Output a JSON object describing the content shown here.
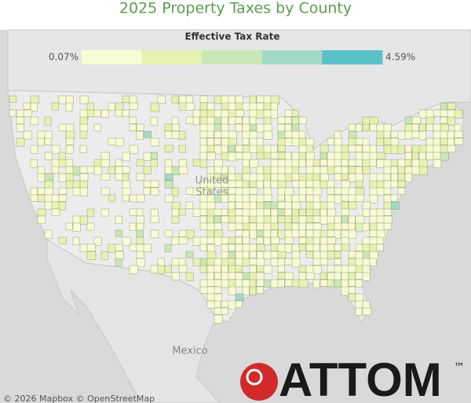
{
  "title": "2025 Property Taxes by County",
  "legend": {
    "title": "Effective Tax Rate",
    "min_label": "0.07%",
    "max_label": "4.59%",
    "colors": [
      "#f7fbd4",
      "#e6f2b2",
      "#c9e7b5",
      "#a3d8c7",
      "#5bc1c9"
    ]
  },
  "map_labels": {
    "country": [
      "United",
      "States"
    ],
    "neighbor": "Mexico"
  },
  "attribution": "© 2026 Mapbox © OpenStreetMap",
  "logo": {
    "text": "ATTOM",
    "mark": "™"
  }
}
